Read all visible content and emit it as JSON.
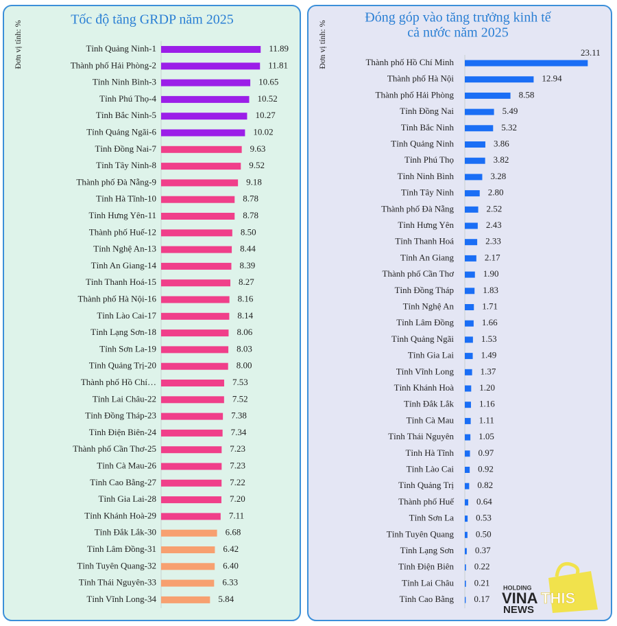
{
  "chart_data": [
    {
      "type": "bar",
      "orientation": "horizontal",
      "title": "Tốc độ tăng GRDP năm 2025",
      "y_label": "Đơn vị tính: %",
      "categories": [
        "Tỉnh Quảng Ninh-1",
        "Thành phố Hải Phòng-2",
        "Tỉnh Ninh Bình-3",
        "Tỉnh Phú Thọ-4",
        "Tỉnh Bắc Ninh-5",
        "Tỉnh Quảng Ngãi-6",
        "Tỉnh Đồng Nai-7",
        "Tỉnh Tây Ninh-8",
        "Thành phố Đà Nẵng-9",
        "Tỉnh Hà Tĩnh-10",
        "Tỉnh Hưng Yên-11",
        "Thành phố Huế-12",
        "Tỉnh Nghệ An-13",
        "Tỉnh An Giang-14",
        "Tỉnh Thanh Hoá-15",
        "Thành phố Hà Nội-16",
        "Tỉnh Lào Cai-17",
        "Tỉnh Lạng Sơn-18",
        "Tỉnh Sơn La-19",
        "Tỉnh Quảng Trị-20",
        "Thành phố Hồ Chí…",
        "Tỉnh Lai Châu-22",
        "Tỉnh Đồng Tháp-23",
        "Tỉnh Điện Biên-24",
        "Thành phố Cần Thơ-25",
        "Tỉnh Cà Mau-26",
        "Tỉnh Cao Bằng-27",
        "Tỉnh Gia Lai-28",
        "Tỉnh Khánh Hoà-29",
        "Tỉnh Đắk Lắk-30",
        "Tỉnh Lâm Đồng-31",
        "Tỉnh Tuyên Quang-32",
        "Tỉnh Thái Nguyên-33",
        "Tỉnh Vĩnh Long-34"
      ],
      "values": [
        11.89,
        11.81,
        10.65,
        10.52,
        10.27,
        10.02,
        9.63,
        9.52,
        9.18,
        8.78,
        8.78,
        8.5,
        8.44,
        8.39,
        8.27,
        8.16,
        8.14,
        8.06,
        8.03,
        8,
        7.53,
        7.52,
        7.38,
        7.34,
        7.23,
        7.23,
        7.22,
        7.2,
        7.11,
        6.68,
        6.42,
        6.4,
        6.33,
        5.84
      ],
      "value_labels": [
        "11.89",
        "11.81",
        "10.65",
        "10.52",
        "10.27",
        "10.02",
        "9.63",
        "9.52",
        "9.18",
        "8.78",
        "8.78",
        "8.50",
        "8.44",
        "8.39",
        "8.27",
        "8.16",
        "8.14",
        "8.06",
        "8.03",
        "8.00",
        "7.53",
        "7.52",
        "7.38",
        "7.34",
        "7.23",
        "7.23",
        "7.22",
        "7.20",
        "7.11",
        "6.68",
        "6.42",
        "6.40",
        "6.33",
        "5.84"
      ],
      "colors": [
        "#9b1fe8",
        "#9b1fe8",
        "#9b1fe8",
        "#9b1fe8",
        "#9b1fe8",
        "#9b1fe8",
        "#f03f8a",
        "#f03f8a",
        "#f03f8a",
        "#f03f8a",
        "#f03f8a",
        "#f03f8a",
        "#f03f8a",
        "#f03f8a",
        "#f03f8a",
        "#f03f8a",
        "#f03f8a",
        "#f03f8a",
        "#f03f8a",
        "#f03f8a",
        "#f03f8a",
        "#f03f8a",
        "#f03f8a",
        "#f03f8a",
        "#f03f8a",
        "#f03f8a",
        "#f03f8a",
        "#f03f8a",
        "#f03f8a",
        "#f7a070",
        "#f7a070",
        "#f7a070",
        "#f7a070",
        "#f7a070"
      ],
      "xlim": [
        0,
        14
      ]
    },
    {
      "type": "bar",
      "orientation": "horizontal",
      "title": [
        "Đóng góp vào tăng trưởng kinh tế",
        "cả nước năm 2025"
      ],
      "y_label": "Đơn vị tính: %",
      "categories": [
        "Thành phố Hồ Chí Minh",
        "Thành phố Hà Nội",
        "Thành phố Hải Phòng",
        "Tỉnh Đồng Nai",
        "Tỉnh Bắc Ninh",
        "Tỉnh Quảng Ninh",
        "Tỉnh Phú Thọ",
        "Tỉnh Ninh Bình",
        "Tỉnh Tây Ninh",
        "Thành phố Đà Nẵng",
        "Tỉnh Hưng Yên",
        "Tỉnh Thanh Hoá",
        "Tỉnh An Giang",
        "Thành phố Cần Thơ",
        "Tỉnh Đồng Tháp",
        "Tỉnh Nghệ An",
        "Tỉnh Lâm Đồng",
        "Tỉnh Quảng Ngãi",
        "Tỉnh Gia Lai",
        "Tỉnh Vĩnh Long",
        "Tỉnh Khánh Hoà",
        "Tỉnh Đắk Lắk",
        "Tỉnh Cà Mau",
        "Tỉnh Thái Nguyên",
        "Tỉnh Hà Tĩnh",
        "Tỉnh Lào Cai",
        "Tỉnh Quảng Trị",
        "Thành phố Huế",
        "Tỉnh Sơn La",
        "Tỉnh Tuyên Quang",
        "Tỉnh Lạng Sơn",
        "Tỉnh Điện Biên",
        "Tỉnh Lai Châu",
        "Tỉnh Cao Bằng"
      ],
      "values": [
        23.11,
        12.94,
        8.58,
        5.49,
        5.32,
        3.86,
        3.82,
        3.28,
        2.8,
        2.52,
        2.43,
        2.33,
        2.17,
        1.9,
        1.83,
        1.71,
        1.66,
        1.53,
        1.49,
        1.37,
        1.2,
        1.16,
        1.11,
        1.05,
        0.97,
        0.92,
        0.82,
        0.64,
        0.53,
        0.5,
        0.37,
        0.22,
        0.21,
        0.17
      ],
      "value_labels": [
        "23.11",
        "12.94",
        "8.58",
        "5.49",
        "5.32",
        "3.86",
        "3.82",
        "3.28",
        "2.80",
        "2.52",
        "2.43",
        "2.33",
        "2.17",
        "1.90",
        "1.83",
        "1.71",
        "1.66",
        "1.53",
        "1.49",
        "1.37",
        "1.20",
        "1.16",
        "1.11",
        "1.05",
        "0.97",
        "0.92",
        "0.82",
        "0.64",
        "0.53",
        "0.50",
        "0.37",
        "0.22",
        "0.21",
        "0.17"
      ],
      "color": "#1a6ef5",
      "xlim": [
        0,
        25
      ]
    }
  ],
  "logo": {
    "top": "HOLDING",
    "brand_left": "VINA",
    "brand_right": "THIS",
    "bottom": "NEWS"
  }
}
